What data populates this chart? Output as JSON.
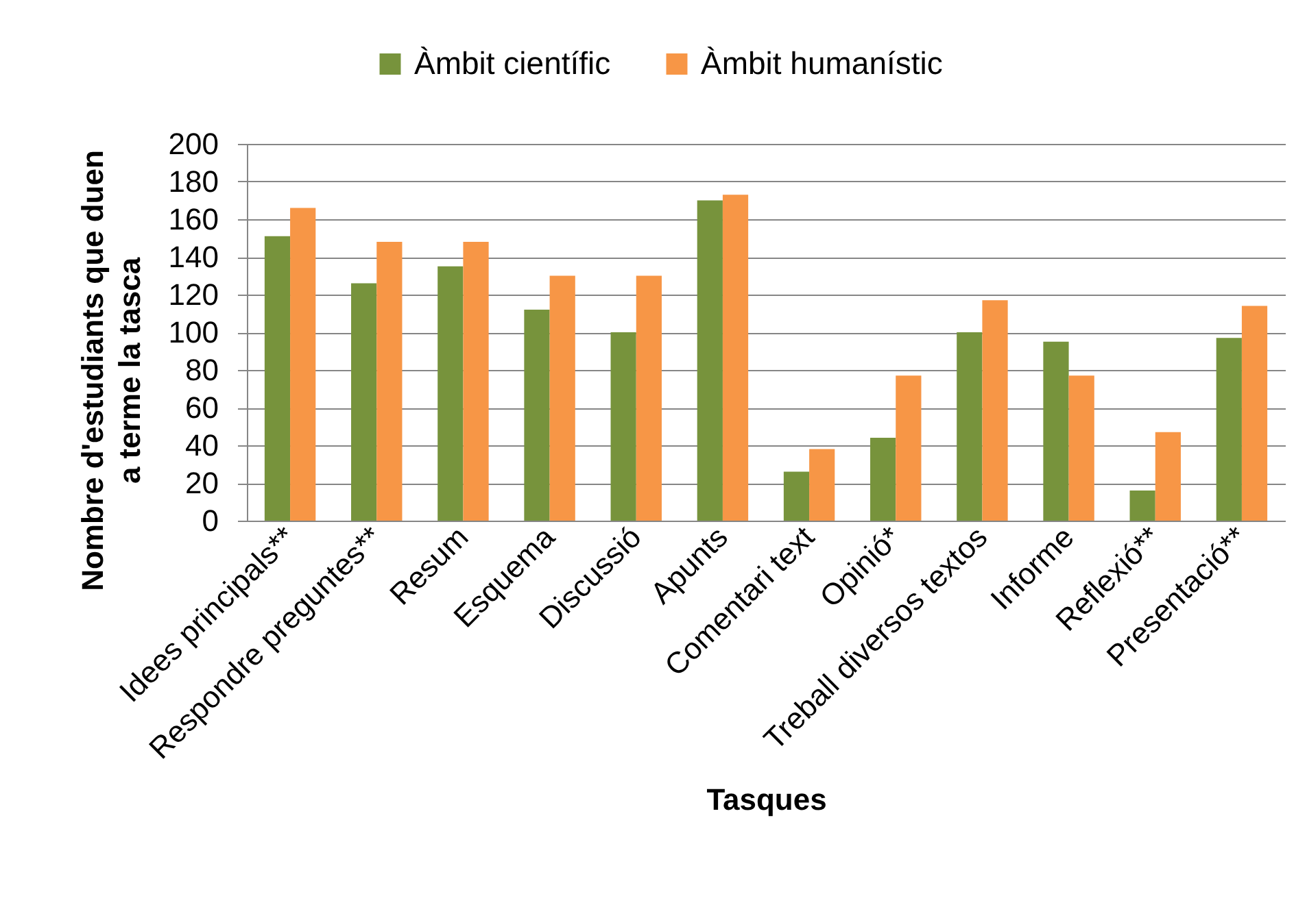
{
  "chart_data": {
    "type": "bar",
    "xlabel": "Tasques",
    "ylabel": "Nombre d'estudiants que duen a terme la tasca",
    "categories": [
      "Idees principals**",
      "Respondre preguntes**",
      "Resum",
      "Esquema",
      "Discussió",
      "Apunts",
      "Comentari text",
      "Opinió*",
      "Treball diversos textos",
      "Informe",
      "Reflexió**",
      "Presentació**"
    ],
    "series": [
      {
        "name": "Àmbit científic",
        "color": "#77933c",
        "values": [
          151,
          126,
          135,
          112,
          100,
          170,
          26,
          44,
          100,
          95,
          16,
          97
        ]
      },
      {
        "name": "Àmbit humanístic",
        "color": "#f79646",
        "values": [
          166,
          148,
          148,
          130,
          130,
          173,
          38,
          77,
          117,
          77,
          47,
          114
        ]
      }
    ],
    "ylim": [
      0,
      200
    ],
    "yticks": [
      0,
      20,
      40,
      60,
      80,
      100,
      120,
      140,
      160,
      180,
      200
    ],
    "grid": "y",
    "legend": "top"
  }
}
